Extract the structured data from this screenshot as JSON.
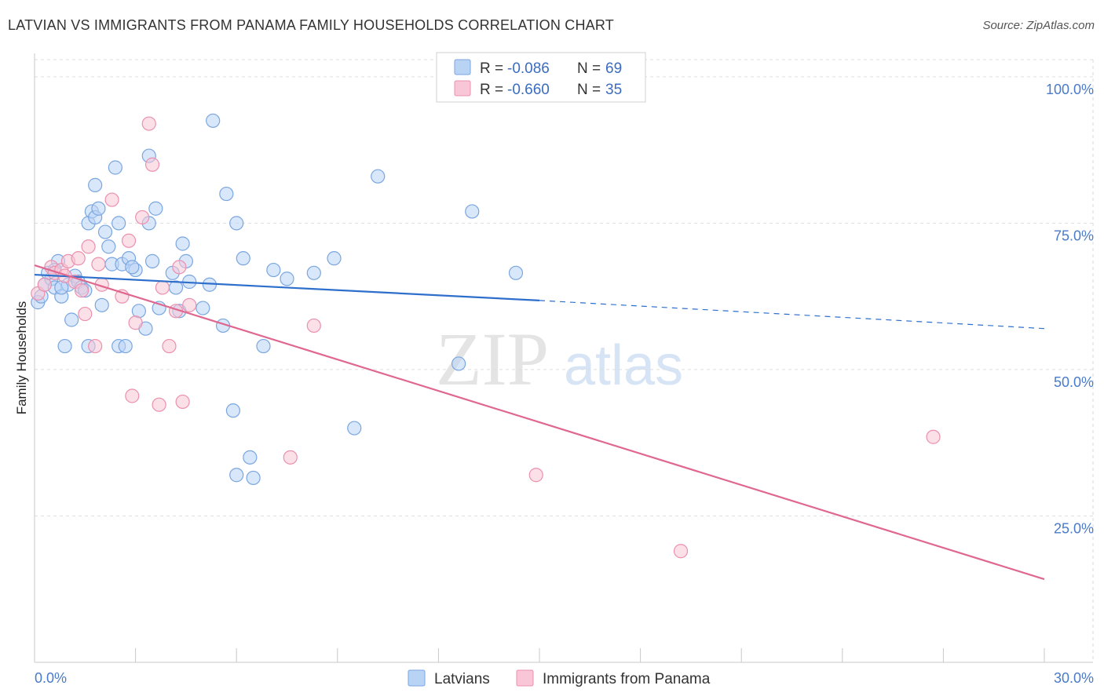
{
  "title": "LATVIAN VS IMMIGRANTS FROM PANAMA FAMILY HOUSEHOLDS CORRELATION CHART",
  "source": "Source: ZipAtlas.com",
  "watermark": {
    "zip": "ZIP",
    "atlas": "atlas"
  },
  "colors": {
    "latvians_fill": "#b9d3f5",
    "latvians_stroke": "#7aa6e0",
    "latvians_line": "#2e6fcc",
    "panama_fill": "#f8c6d6",
    "panama_stroke": "#eb90ae",
    "panama_line": "#e0678f",
    "axis_text": "#4a7bc8",
    "grid": "#dddddd"
  },
  "legend": {
    "rows": [
      {
        "r_label": "R =",
        "r_value": "-0.086",
        "n_label": "N =",
        "n_value": "69"
      },
      {
        "r_label": "R =",
        "r_value": "-0.660",
        "n_label": "N =",
        "n_value": "35"
      }
    ]
  },
  "bottom_legend": {
    "latvians": "Latvians",
    "panama": "Immigrants from Panama"
  },
  "chart_data": {
    "type": "scatter",
    "title": "LATVIAN VS IMMIGRANTS FROM PANAMA FAMILY HOUSEHOLDS CORRELATION CHART",
    "xlabel": "",
    "ylabel": "Family Households",
    "xlim": [
      0,
      30
    ],
    "ylim": [
      0,
      104
    ],
    "x_tick_labels": [
      "0.0%",
      "30.0%"
    ],
    "y_ticks": [
      25,
      50,
      75,
      100
    ],
    "y_tick_labels": [
      "25.0%",
      "50.0%",
      "75.0%",
      "100.0%"
    ],
    "grid": true,
    "series": [
      {
        "name": "Latvians",
        "points": [
          [
            0.1,
            61.5
          ],
          [
            0.2,
            62.5
          ],
          [
            0.3,
            64.5
          ],
          [
            0.5,
            65.5
          ],
          [
            0.6,
            64.0
          ],
          [
            0.7,
            68.5
          ],
          [
            0.8,
            62.5
          ],
          [
            1.0,
            64.5
          ],
          [
            1.1,
            58.5
          ],
          [
            1.2,
            66.0
          ],
          [
            1.3,
            65.0
          ],
          [
            1.4,
            64.0
          ],
          [
            1.5,
            63.5
          ],
          [
            1.6,
            75.0
          ],
          [
            1.7,
            77.0
          ],
          [
            1.8,
            76.0
          ],
          [
            1.8,
            81.5
          ],
          [
            1.9,
            77.5
          ],
          [
            2.0,
            61.0
          ],
          [
            2.1,
            73.5
          ],
          [
            2.2,
            71.0
          ],
          [
            2.3,
            68.0
          ],
          [
            2.4,
            84.5
          ],
          [
            2.5,
            75.0
          ],
          [
            2.6,
            68.0
          ],
          [
            2.5,
            54.0
          ],
          [
            1.6,
            54.0
          ],
          [
            0.9,
            54.0
          ],
          [
            2.7,
            54.0
          ],
          [
            2.8,
            69.0
          ],
          [
            3.0,
            67.0
          ],
          [
            3.1,
            60.0
          ],
          [
            3.3,
            57.0
          ],
          [
            3.4,
            75.0
          ],
          [
            3.4,
            86.5
          ],
          [
            3.5,
            68.5
          ],
          [
            3.6,
            77.5
          ],
          [
            3.7,
            60.5
          ],
          [
            4.1,
            66.5
          ],
          [
            4.2,
            64.0
          ],
          [
            4.3,
            60.0
          ],
          [
            4.4,
            71.5
          ],
          [
            4.5,
            68.5
          ],
          [
            4.6,
            65.0
          ],
          [
            5.0,
            60.5
          ],
          [
            5.2,
            64.5
          ],
          [
            5.3,
            92.5
          ],
          [
            5.6,
            57.5
          ],
          [
            5.7,
            80.0
          ],
          [
            5.9,
            43.0
          ],
          [
            6.0,
            75.0
          ],
          [
            6.2,
            69.0
          ],
          [
            6.4,
            35.0
          ],
          [
            6.5,
            31.5
          ],
          [
            6.8,
            54.0
          ],
          [
            7.1,
            67.0
          ],
          [
            7.5,
            65.5
          ],
          [
            8.3,
            66.5
          ],
          [
            8.9,
            69.0
          ],
          [
            9.5,
            40.0
          ],
          [
            10.2,
            83.0
          ],
          [
            12.6,
            51.0
          ],
          [
            13.0,
            77.0
          ],
          [
            14.3,
            66.5
          ],
          [
            6.0,
            32.0
          ],
          [
            0.4,
            66.5
          ],
          [
            0.6,
            67.0
          ],
          [
            0.8,
            64.0
          ],
          [
            2.9,
            67.5
          ]
        ]
      },
      {
        "name": "Immigrants from Panama",
        "points": [
          [
            0.1,
            63.0
          ],
          [
            0.3,
            64.5
          ],
          [
            0.5,
            67.5
          ],
          [
            0.6,
            66.5
          ],
          [
            0.8,
            67.0
          ],
          [
            0.9,
            66.0
          ],
          [
            1.0,
            68.5
          ],
          [
            1.2,
            65.0
          ],
          [
            1.3,
            69.0
          ],
          [
            1.4,
            63.5
          ],
          [
            1.5,
            59.5
          ],
          [
            1.6,
            71.0
          ],
          [
            1.8,
            54.0
          ],
          [
            1.9,
            68.0
          ],
          [
            2.0,
            64.5
          ],
          [
            2.3,
            79.0
          ],
          [
            2.6,
            62.5
          ],
          [
            2.8,
            72.0
          ],
          [
            2.9,
            45.5
          ],
          [
            3.0,
            58.0
          ],
          [
            3.2,
            76.0
          ],
          [
            3.4,
            92.0
          ],
          [
            3.5,
            85.0
          ],
          [
            3.7,
            44.0
          ],
          [
            3.8,
            64.0
          ],
          [
            4.0,
            54.0
          ],
          [
            4.2,
            60.0
          ],
          [
            4.3,
            67.5
          ],
          [
            4.4,
            44.5
          ],
          [
            4.6,
            61.0
          ],
          [
            7.6,
            35.0
          ],
          [
            8.3,
            57.5
          ],
          [
            14.9,
            32.0
          ],
          [
            19.2,
            19.0
          ],
          [
            26.7,
            38.5
          ]
        ]
      }
    ],
    "trend_lines": [
      {
        "series": "Latvians",
        "solid": {
          "x1": 0,
          "y1": 66.2,
          "x2": 15,
          "y2": 61.8
        },
        "dashed": {
          "x1": 15,
          "y1": 61.8,
          "x2": 30,
          "y2": 57.0
        }
      },
      {
        "series": "Immigrants from Panama",
        "solid": {
          "x1": 0,
          "y1": 67.8,
          "x2": 30,
          "y2": 14.2
        }
      }
    ]
  }
}
